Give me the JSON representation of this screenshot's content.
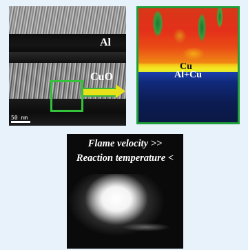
{
  "tem_panel": {
    "label_al": "Al",
    "label_cuo": "CuO",
    "scale_bar_text": "50 nm"
  },
  "eds_panel": {
    "label_cu": "Cu",
    "label_al_cu": "Al+Cu"
  },
  "flame_panel": {
    "caption_line1": "Flame velocity >>",
    "caption_line2": "Reaction temperature <"
  },
  "colors": {
    "background": "#e8f2fa",
    "frame_green": "#1f9e3a",
    "arrow_yellow": "#e7e21b"
  }
}
